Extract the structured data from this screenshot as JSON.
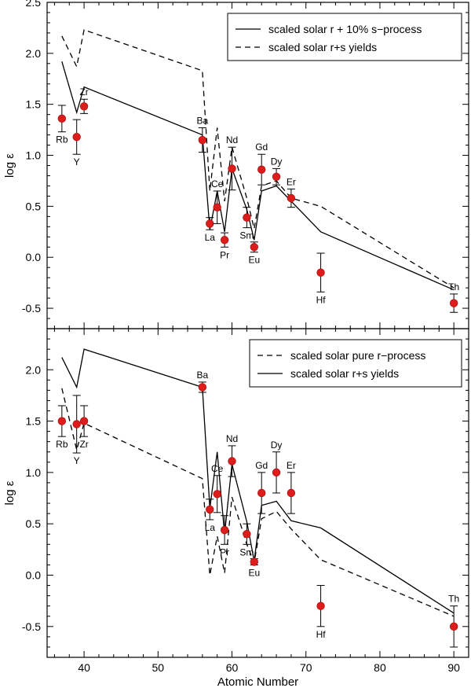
{
  "chart_data": [
    {
      "type": "line",
      "ylabel": "log ε",
      "xlabel": "",
      "xlim": [
        35,
        92
      ],
      "ylim": [
        -0.7,
        2.5
      ],
      "yticks": [
        "2.5",
        "2.0",
        "1.5",
        "1.0",
        "0.5",
        "0.0",
        "-0.5"
      ],
      "ytick_values": [
        2.5,
        2.0,
        1.5,
        1.0,
        0.5,
        0.0,
        -0.5
      ],
      "legend": [
        {
          "label": "scaled solar r + 10% s−process",
          "style": "solid"
        },
        {
          "label": "scaled solar r+s yields",
          "style": "dashed"
        }
      ],
      "series": [
        {
          "name": "scaled solar r + 10% s−process",
          "style": "solid",
          "x": [
            37,
            39,
            40,
            56,
            57,
            58,
            59,
            60,
            62,
            63,
            64,
            66,
            68,
            72,
            90
          ],
          "y": [
            1.92,
            1.42,
            1.67,
            1.2,
            0.27,
            0.65,
            0.25,
            0.87,
            0.47,
            0.17,
            0.65,
            0.7,
            0.55,
            0.25,
            -0.32
          ]
        },
        {
          "name": "scaled solar r+s yields",
          "style": "dashed",
          "x": [
            37,
            39,
            40,
            56,
            57,
            58,
            59,
            60,
            62,
            63,
            64,
            66,
            68,
            72,
            90
          ],
          "y": [
            2.17,
            1.87,
            2.23,
            1.83,
            0.65,
            1.27,
            0.55,
            1.08,
            0.58,
            0.28,
            0.7,
            0.75,
            0.58,
            0.5,
            -0.3
          ]
        }
      ],
      "observed": {
        "elements": [
          "Rb",
          "Y",
          "Zr",
          "Ba",
          "La",
          "Ce",
          "Pr",
          "Nd",
          "Sm",
          "Eu",
          "Gd",
          "Dy",
          "Er",
          "Hf",
          "Th"
        ],
        "x": [
          37,
          39,
          40,
          56,
          57,
          58,
          59,
          60,
          62,
          63,
          64,
          66,
          68,
          72,
          90
        ],
        "y": [
          1.36,
          1.18,
          1.48,
          1.15,
          0.33,
          0.49,
          0.17,
          0.87,
          0.39,
          0.1,
          0.86,
          0.79,
          0.58,
          -0.15,
          -0.45
        ],
        "err": [
          0.13,
          0.17,
          0.07,
          0.12,
          0.06,
          0.16,
          0.07,
          0.21,
          0.1,
          0.05,
          0.15,
          0.08,
          0.09,
          0.19,
          0.09
        ],
        "label_pos": [
          "below",
          "below",
          "above",
          "above",
          "below",
          "above",
          "below",
          "above",
          "below",
          "below",
          "above",
          "above",
          "above",
          "below",
          "above"
        ]
      }
    },
    {
      "type": "line",
      "ylabel": "log ε",
      "xlabel": "Atomic Number",
      "xlim": [
        35,
        92
      ],
      "ylim": [
        -0.8,
        2.4
      ],
      "yticks": [
        "2.0",
        "1.5",
        "1.0",
        "0.5",
        "0.0",
        "-0.5"
      ],
      "ytick_values": [
        2.0,
        1.5,
        1.0,
        0.5,
        0.0,
        -0.5
      ],
      "xticks": [
        "40",
        "50",
        "60",
        "70",
        "80",
        "90"
      ],
      "xtick_values": [
        40,
        50,
        60,
        70,
        80,
        90
      ],
      "legend": [
        {
          "label": "scaled solar pure r−process",
          "style": "dashed"
        },
        {
          "label": "scaled solar r+s yields",
          "style": "solid"
        }
      ],
      "series": [
        {
          "name": "scaled solar pure r−process",
          "style": "dashed",
          "x": [
            37,
            39,
            40,
            56,
            57,
            58,
            59,
            60,
            62,
            63,
            64,
            66,
            68,
            72,
            90
          ],
          "y": [
            1.82,
            1.22,
            1.48,
            0.94,
            0.0,
            0.38,
            0.02,
            0.76,
            0.3,
            0.12,
            0.55,
            0.62,
            0.45,
            0.15,
            -0.4
          ]
        },
        {
          "name": "scaled solar r+s yields",
          "style": "solid",
          "x": [
            37,
            39,
            40,
            56,
            57,
            58,
            59,
            60,
            62,
            63,
            64,
            66,
            68,
            72,
            90
          ],
          "y": [
            2.12,
            1.83,
            2.2,
            1.83,
            0.65,
            1.2,
            0.4,
            1.08,
            0.52,
            0.14,
            0.68,
            0.72,
            0.53,
            0.46,
            -0.37
          ]
        }
      ],
      "observed": {
        "elements": [
          "Rb",
          "Y",
          "Zr",
          "Ba",
          "La",
          "Ce",
          "Pr",
          "Nd",
          "Sm",
          "Eu",
          "Gd",
          "Dy",
          "Er",
          "Hf",
          "Th"
        ],
        "x": [
          37,
          39,
          40,
          56,
          57,
          58,
          59,
          60,
          62,
          63,
          64,
          66,
          68,
          72,
          90
        ],
        "y": [
          1.5,
          1.47,
          1.5,
          1.83,
          0.64,
          0.79,
          0.44,
          1.11,
          0.4,
          0.13,
          0.8,
          1.0,
          0.8,
          -0.3,
          -0.5
        ],
        "err": [
          0.15,
          0.28,
          0.15,
          0.05,
          0.1,
          0.18,
          0.14,
          0.15,
          0.1,
          0.03,
          0.2,
          0.2,
          0.2,
          0.2,
          0.2
        ],
        "label_pos": [
          "below",
          "below",
          "below",
          "above",
          "below",
          "above",
          "below",
          "above",
          "below",
          "below",
          "above",
          "above",
          "above",
          "below",
          "above"
        ]
      }
    }
  ]
}
